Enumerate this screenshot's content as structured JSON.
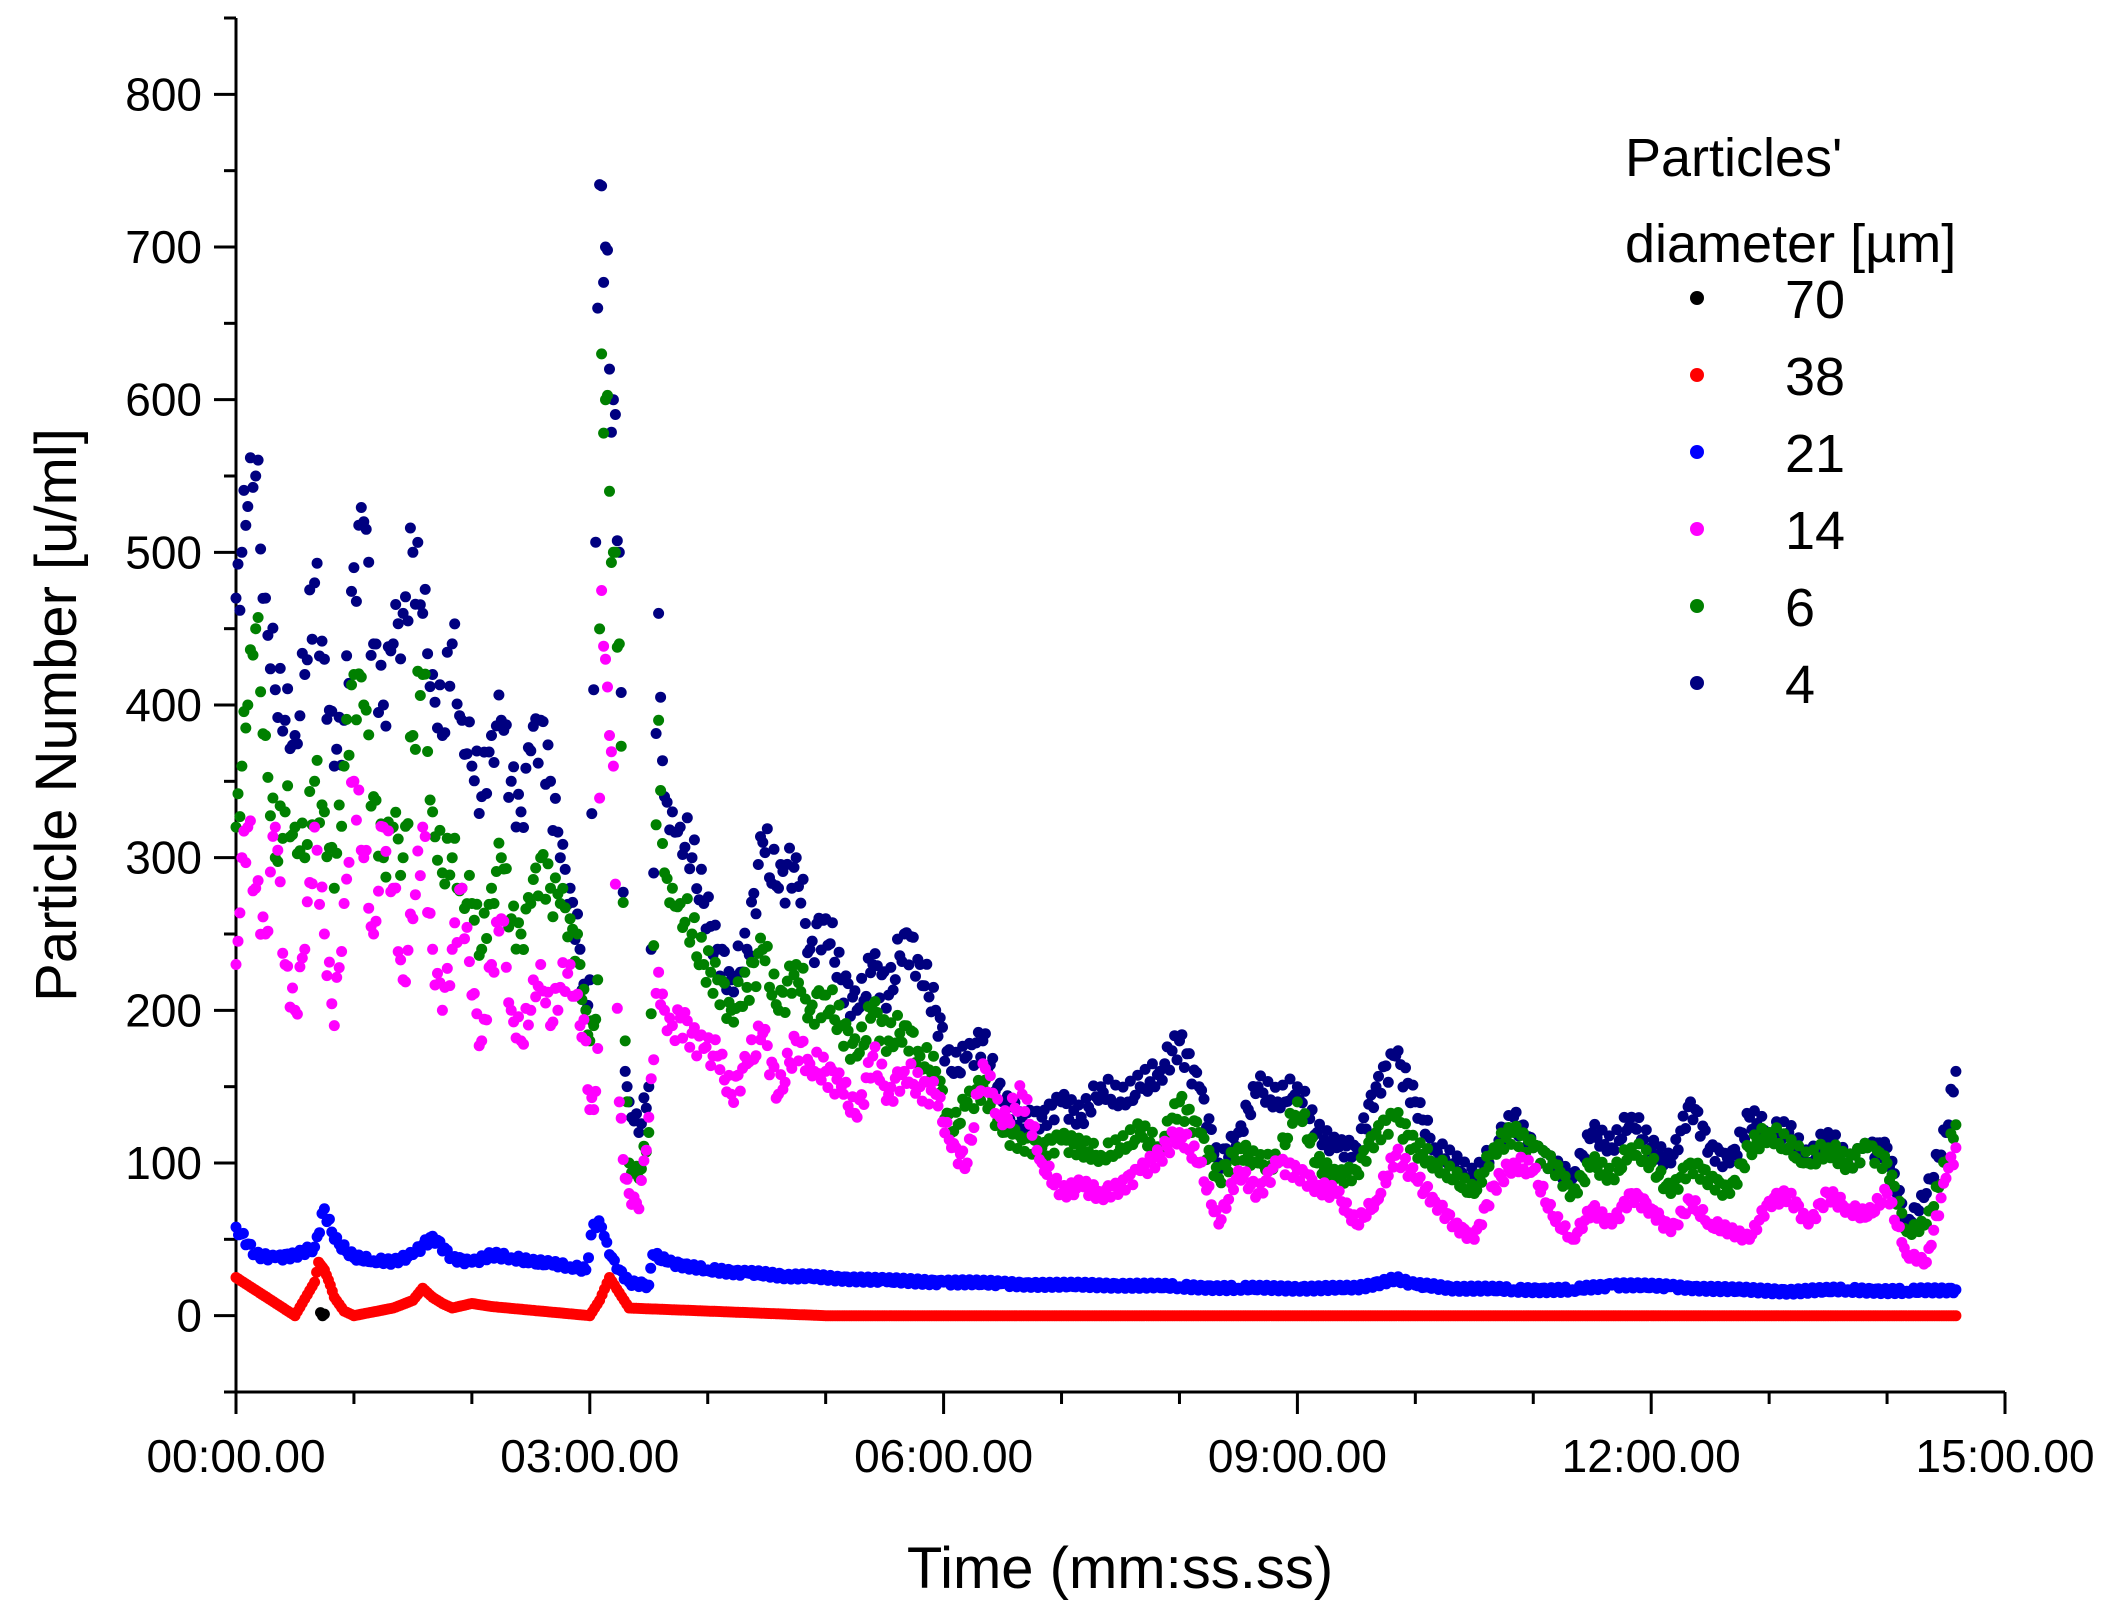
{
  "chart_data": {
    "type": "scatter",
    "xlabel": "Time (mm:ss.ss)",
    "ylabel": "Particle Number [u/ml]",
    "xlim_seconds": [
      0,
      900
    ],
    "ylim": [
      -50,
      850
    ],
    "x_ticks": [
      {
        "seconds": 0,
        "label": "00:00.00"
      },
      {
        "seconds": 180,
        "label": "03:00.00"
      },
      {
        "seconds": 360,
        "label": "06:00.00"
      },
      {
        "seconds": 540,
        "label": "09:00.00"
      },
      {
        "seconds": 720,
        "label": "12:00.00"
      },
      {
        "seconds": 900,
        "label": "15:00.00"
      }
    ],
    "y_ticks": [
      {
        "value": 0,
        "label": "0"
      },
      {
        "value": 100,
        "label": "100"
      },
      {
        "value": 200,
        "label": "200"
      },
      {
        "value": 300,
        "label": "300"
      },
      {
        "value": 400,
        "label": "400"
      },
      {
        "value": 500,
        "label": "500"
      },
      {
        "value": 600,
        "label": "600"
      },
      {
        "value": 700,
        "label": "700"
      },
      {
        "value": 800,
        "label": "800"
      }
    ],
    "legend": {
      "title_line1": "Particles'",
      "title_line2": "diameter [µm]",
      "placement": "top-right"
    },
    "series": [
      {
        "name": "70",
        "color": "#000000",
        "x": [
          43,
          44,
          45
        ],
        "y": [
          2,
          0,
          1
        ]
      },
      {
        "name": "38",
        "color": "#ff0000",
        "x": [
          0,
          30,
          40,
          42,
          45,
          48,
          50,
          55,
          60,
          80,
          90,
          95,
          100,
          105,
          110,
          120,
          130,
          180,
          185,
          190,
          195,
          200,
          300,
          450,
          600,
          750,
          875
        ],
        "y": [
          25,
          0,
          22,
          35,
          30,
          20,
          12,
          3,
          0,
          5,
          10,
          18,
          12,
          8,
          5,
          8,
          6,
          0,
          10,
          25,
          15,
          5,
          0,
          0,
          0,
          0,
          0
        ]
      },
      {
        "name": "21",
        "color": "#0000ff",
        "x": [
          0,
          10,
          20,
          30,
          40,
          45,
          50,
          60,
          70,
          80,
          90,
          100,
          110,
          120,
          130,
          140,
          150,
          160,
          170,
          178,
          182,
          186,
          190,
          195,
          200,
          210,
          212,
          220,
          240,
          260,
          280,
          300,
          330,
          360,
          390,
          420,
          450,
          480,
          510,
          540,
          570,
          590,
          600,
          620,
          650,
          680,
          700,
          730,
          760,
          790,
          820,
          850,
          875
        ],
        "y": [
          58,
          40,
          38,
          40,
          45,
          70,
          50,
          38,
          36,
          35,
          40,
          52,
          38,
          35,
          40,
          38,
          35,
          34,
          32,
          30,
          60,
          58,
          40,
          30,
          22,
          20,
          40,
          35,
          30,
          28,
          26,
          25,
          23,
          22,
          21,
          20,
          20,
          19,
          18,
          18,
          18,
          24,
          20,
          18,
          17,
          17,
          20,
          19,
          17,
          16,
          17,
          16,
          17
        ]
      },
      {
        "name": "14",
        "color": "#ff00ff",
        "x": [
          0,
          3,
          6,
          10,
          15,
          20,
          25,
          30,
          35,
          40,
          45,
          50,
          55,
          60,
          65,
          70,
          75,
          80,
          85,
          90,
          95,
          100,
          105,
          110,
          115,
          120,
          125,
          130,
          135,
          140,
          145,
          150,
          155,
          160,
          165,
          170,
          175,
          178,
          180,
          182,
          184,
          186,
          188,
          190,
          192,
          195,
          198,
          200,
          205,
          210,
          215,
          218,
          222,
          226,
          232,
          238,
          245,
          252,
          260,
          268,
          276,
          285,
          292,
          300,
          308,
          316,
          324,
          332,
          340,
          348,
          356,
          364,
          372,
          380,
          390,
          400,
          410,
          420,
          430,
          440,
          450,
          460,
          470,
          480,
          490,
          500,
          510,
          520,
          530,
          540,
          550,
          560,
          570,
          580,
          590,
          600,
          610,
          620,
          630,
          640,
          650,
          660,
          670,
          680,
          690,
          700,
          710,
          720,
          730,
          740,
          750,
          760,
          770,
          780,
          790,
          800,
          810,
          820,
          830,
          840,
          850,
          860,
          870,
          875
        ],
        "y": [
          230,
          300,
          320,
          280,
          250,
          320,
          230,
          200,
          240,
          320,
          250,
          190,
          270,
          350,
          300,
          250,
          320,
          280,
          220,
          260,
          320,
          240,
          200,
          240,
          280,
          210,
          180,
          230,
          260,
          200,
          180,
          200,
          230,
          190,
          215,
          230,
          190,
          180,
          135,
          135,
          175,
          475,
          430,
          380,
          360,
          140,
          90,
          80,
          70,
          130,
          225,
          200,
          190,
          195,
          185,
          175,
          170,
          145,
          165,
          185,
          145,
          180,
          165,
          160,
          150,
          130,
          170,
          145,
          160,
          150,
          145,
          110,
          100,
          165,
          125,
          145,
          100,
          80,
          85,
          80,
          85,
          95,
          105,
          120,
          100,
          60,
          95,
          80,
          100,
          95,
          85,
          80,
          60,
          75,
          105,
          90,
          75,
          60,
          50,
          85,
          100,
          95,
          65,
          50,
          70,
          60,
          80,
          70,
          55,
          75,
          60,
          55,
          50,
          75,
          80,
          60,
          80,
          70,
          65,
          80,
          40,
          35,
          90,
          110
        ]
      },
      {
        "name": "6",
        "color": "#008000",
        "x": [
          0,
          3,
          6,
          10,
          15,
          20,
          25,
          30,
          35,
          40,
          45,
          50,
          55,
          60,
          65,
          70,
          75,
          80,
          85,
          90,
          95,
          100,
          105,
          110,
          115,
          120,
          125,
          130,
          135,
          140,
          145,
          150,
          155,
          160,
          165,
          170,
          175,
          178,
          180,
          182,
          184,
          186,
          188,
          190,
          192,
          195,
          198,
          200,
          205,
          210,
          215,
          218,
          222,
          226,
          232,
          238,
          245,
          252,
          260,
          268,
          276,
          285,
          292,
          300,
          308,
          316,
          324,
          332,
          340,
          348,
          356,
          364,
          372,
          380,
          390,
          400,
          410,
          420,
          430,
          440,
          450,
          460,
          470,
          480,
          490,
          500,
          510,
          520,
          530,
          540,
          550,
          560,
          570,
          580,
          590,
          600,
          610,
          620,
          630,
          640,
          650,
          660,
          670,
          680,
          690,
          700,
          710,
          720,
          730,
          740,
          750,
          760,
          770,
          780,
          790,
          800,
          810,
          820,
          830,
          840,
          850,
          860,
          870,
          875
        ],
        "y": [
          320,
          360,
          400,
          450,
          380,
          300,
          330,
          320,
          300,
          350,
          330,
          280,
          360,
          420,
          400,
          340,
          300,
          320,
          300,
          380,
          420,
          330,
          290,
          300,
          280,
          270,
          240,
          280,
          300,
          260,
          250,
          270,
          300,
          280,
          270,
          260,
          230,
          200,
          180,
          190,
          220,
          630,
          600,
          540,
          500,
          440,
          180,
          100,
          90,
          120,
          390,
          290,
          280,
          270,
          250,
          230,
          220,
          200,
          215,
          240,
          200,
          230,
          200,
          210,
          190,
          170,
          200,
          180,
          190,
          170,
          160,
          120,
          140,
          150,
          120,
          115,
          110,
          115,
          110,
          105,
          110,
          120,
          110,
          140,
          120,
          90,
          110,
          100,
          100,
          140,
          100,
          90,
          95,
          120,
          130,
          110,
          100,
          90,
          80,
          110,
          120,
          110,
          100,
          80,
          100,
          90,
          110,
          100,
          80,
          100,
          90,
          80,
          110,
          120,
          110,
          100,
          110,
          100,
          110,
          100,
          55,
          60,
          100,
          125
        ]
      },
      {
        "name": "4",
        "color": "#000080",
        "x": [
          0,
          3,
          6,
          10,
          15,
          20,
          25,
          30,
          35,
          40,
          45,
          50,
          55,
          60,
          65,
          70,
          75,
          80,
          85,
          90,
          95,
          100,
          105,
          110,
          115,
          120,
          125,
          130,
          135,
          140,
          145,
          150,
          155,
          160,
          165,
          170,
          175,
          178,
          180,
          182,
          184,
          186,
          188,
          190,
          192,
          195,
          198,
          200,
          205,
          210,
          215,
          218,
          222,
          226,
          232,
          238,
          245,
          252,
          260,
          268,
          276,
          285,
          292,
          300,
          308,
          316,
          324,
          332,
          340,
          348,
          356,
          364,
          372,
          380,
          390,
          400,
          410,
          420,
          430,
          440,
          450,
          460,
          470,
          480,
          490,
          500,
          510,
          520,
          530,
          540,
          550,
          560,
          570,
          580,
          590,
          600,
          610,
          620,
          630,
          640,
          650,
          660,
          670,
          680,
          690,
          700,
          710,
          720,
          730,
          740,
          750,
          760,
          770,
          780,
          790,
          800,
          810,
          820,
          830,
          840,
          850,
          860,
          870,
          875
        ],
        "y": [
          470,
          500,
          530,
          550,
          470,
          410,
          390,
          380,
          420,
          480,
          430,
          360,
          390,
          490,
          520,
          440,
          400,
          440,
          460,
          500,
          460,
          420,
          380,
          440,
          390,
          360,
          340,
          380,
          390,
          350,
          330,
          370,
          390,
          350,
          300,
          280,
          240,
          200,
          220,
          410,
          660,
          740,
          700,
          620,
          600,
          500,
          160,
          140,
          120,
          150,
          460,
          340,
          330,
          320,
          300,
          270,
          240,
          220,
          240,
          310,
          280,
          300,
          240,
          260,
          220,
          200,
          230,
          210,
          250,
          230,
          200,
          160,
          170,
          180,
          140,
          130,
          130,
          140,
          130,
          150,
          140,
          150,
          160,
          180,
          150,
          100,
          120,
          150,
          140,
          150,
          120,
          110,
          110,
          150,
          170,
          140,
          110,
          100,
          90,
          110,
          130,
          110,
          100,
          90,
          120,
          110,
          130,
          110,
          100,
          140,
          110,
          100,
          130,
          120,
          120,
          100,
          120,
          100,
          110,
          110,
          60,
          80,
          120,
          160
        ]
      }
    ]
  }
}
